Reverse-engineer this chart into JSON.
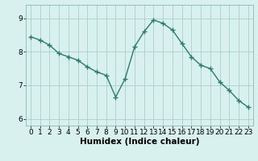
{
  "x": [
    0,
    1,
    2,
    3,
    4,
    5,
    6,
    7,
    8,
    9,
    10,
    11,
    12,
    13,
    14,
    15,
    16,
    17,
    18,
    19,
    20,
    21,
    22,
    23
  ],
  "y": [
    8.45,
    8.35,
    8.2,
    7.95,
    7.85,
    7.75,
    7.55,
    7.4,
    7.3,
    6.65,
    7.2,
    8.15,
    8.6,
    8.95,
    8.85,
    8.65,
    8.25,
    7.85,
    7.6,
    7.5,
    7.1,
    6.85,
    6.55,
    6.35
  ],
  "line_color": "#2d7a6e",
  "marker": "+",
  "markersize": 4,
  "markeredgewidth": 1.0,
  "linewidth": 1.0,
  "bg_color": "#d8f0ee",
  "grid_color": "#aacfcc",
  "xlabel": "Humidex (Indice chaleur)",
  "xlabel_fontsize": 7.5,
  "xlim": [
    -0.5,
    23.5
  ],
  "ylim": [
    5.8,
    9.4
  ],
  "yticks": [
    6,
    7,
    8,
    9
  ],
  "xticks": [
    0,
    1,
    2,
    3,
    4,
    5,
    6,
    7,
    8,
    9,
    10,
    11,
    12,
    13,
    14,
    15,
    16,
    17,
    18,
    19,
    20,
    21,
    22,
    23
  ],
  "tick_fontsize": 6.5
}
